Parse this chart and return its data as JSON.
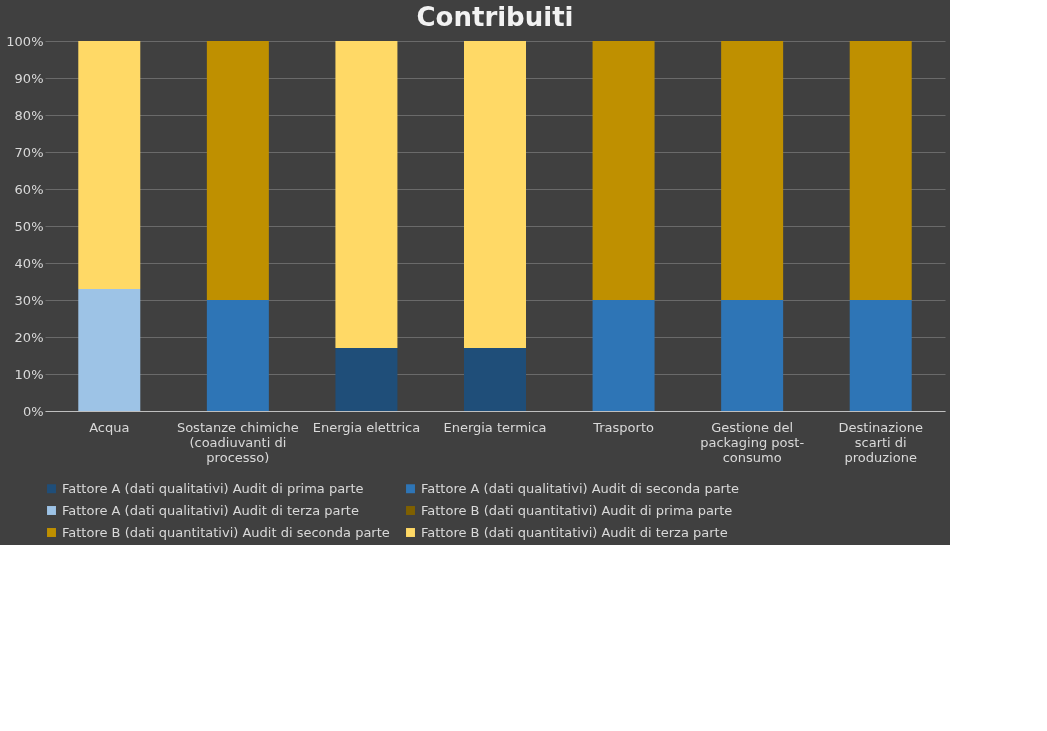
{
  "chart_data": {
    "type": "bar",
    "stacked": true,
    "title": "Contribuiti",
    "categories": [
      "Acqua",
      "Sostanze chimiche (coadiuvanti di processo)",
      "Energia elettrica",
      "Energia termica",
      "Trasporto",
      "Gestione del packaging post-consumo",
      "Destinazione scarti di produzione"
    ],
    "series": [
      {
        "name": "Fattore A (dati qualitativi) Audit di prima parte",
        "color": "#1f4e79",
        "values": [
          null,
          null,
          17,
          17,
          null,
          null,
          null
        ]
      },
      {
        "name": "Fattore A (dati qualitativi) Audit di seconda parte",
        "color": "#2e75b6",
        "values": [
          null,
          30,
          null,
          null,
          30,
          30,
          30
        ]
      },
      {
        "name": "Fattore A (dati qualitativi) Audit di terza parte",
        "color": "#9dc3e6",
        "values": [
          33,
          null,
          null,
          null,
          null,
          null,
          null
        ]
      },
      {
        "name": "Fattore B (dati quantitativi) Audit di prima parte",
        "color": "#7f6000",
        "values": [
          null,
          null,
          null,
          null,
          null,
          null,
          null
        ]
      },
      {
        "name": "Fattore B (dati quantitativi) Audit di seconda parte",
        "color": "#bf9000",
        "values": [
          null,
          70,
          null,
          null,
          70,
          70,
          70
        ]
      },
      {
        "name": "Fattore B (dati quantitativi) Audit di terza parte",
        "color": "#ffd966",
        "values": [
          67,
          null,
          83,
          83,
          null,
          null,
          null
        ]
      }
    ],
    "ylim": [
      0,
      100
    ],
    "yticks": [
      {
        "value": 0,
        "label": "0%"
      },
      {
        "value": 10,
        "label": "10%"
      },
      {
        "value": 20,
        "label": "20%"
      },
      {
        "value": 30,
        "label": "30%"
      },
      {
        "value": 40,
        "label": "40%"
      },
      {
        "value": 50,
        "label": "50%"
      },
      {
        "value": 60,
        "label": "60%"
      },
      {
        "value": 70,
        "label": "70%"
      },
      {
        "value": 80,
        "label": "80%"
      },
      {
        "value": 90,
        "label": "90%"
      },
      {
        "value": 100,
        "label": "100%"
      }
    ],
    "grid": "y",
    "legend": "bottom"
  }
}
